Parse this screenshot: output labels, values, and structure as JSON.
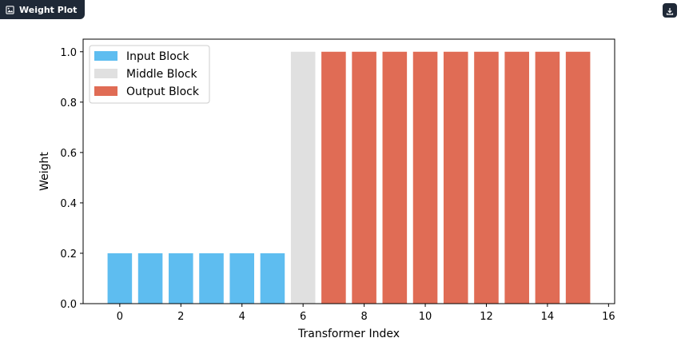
{
  "header": {
    "title": "Weight Plot",
    "image_icon": "image-icon",
    "download_icon": "download-icon"
  },
  "chart_data": {
    "type": "bar",
    "x": [
      0,
      1,
      2,
      3,
      4,
      5,
      6,
      7,
      8,
      9,
      10,
      11,
      12,
      13,
      14,
      15
    ],
    "series": [
      {
        "name": "Input Block",
        "color": "#5ebdf0",
        "x": [
          0,
          1,
          2,
          3,
          4,
          5
        ],
        "values": [
          0.2,
          0.2,
          0.2,
          0.2,
          0.2,
          0.2
        ]
      },
      {
        "name": "Middle Block",
        "color": "#e0e0e0",
        "x": [
          6
        ],
        "values": [
          1.0
        ]
      },
      {
        "name": "Output Block",
        "color": "#e06c55",
        "x": [
          7,
          8,
          9,
          10,
          11,
          12,
          13,
          14,
          15
        ],
        "values": [
          1.0,
          1.0,
          1.0,
          1.0,
          1.0,
          1.0,
          1.0,
          1.0,
          1.0
        ]
      }
    ],
    "xlabel": "Transformer Index",
    "ylabel": "Weight",
    "xlim": [
      -1.2,
      16.2
    ],
    "ylim": [
      0,
      1.05
    ],
    "xticks": [
      0,
      2,
      4,
      6,
      8,
      10,
      12,
      14,
      16
    ],
    "xtick_labels": [
      "0",
      "2",
      "4",
      "6",
      "8",
      "10",
      "12",
      "14",
      "16"
    ],
    "yticks": [
      0.0,
      0.2,
      0.4,
      0.6,
      0.8,
      1.0
    ],
    "ytick_labels": [
      "0.0",
      "0.2",
      "0.4",
      "0.6",
      "0.8",
      "1.0"
    ],
    "grid": false,
    "legend_position": "top-left"
  }
}
